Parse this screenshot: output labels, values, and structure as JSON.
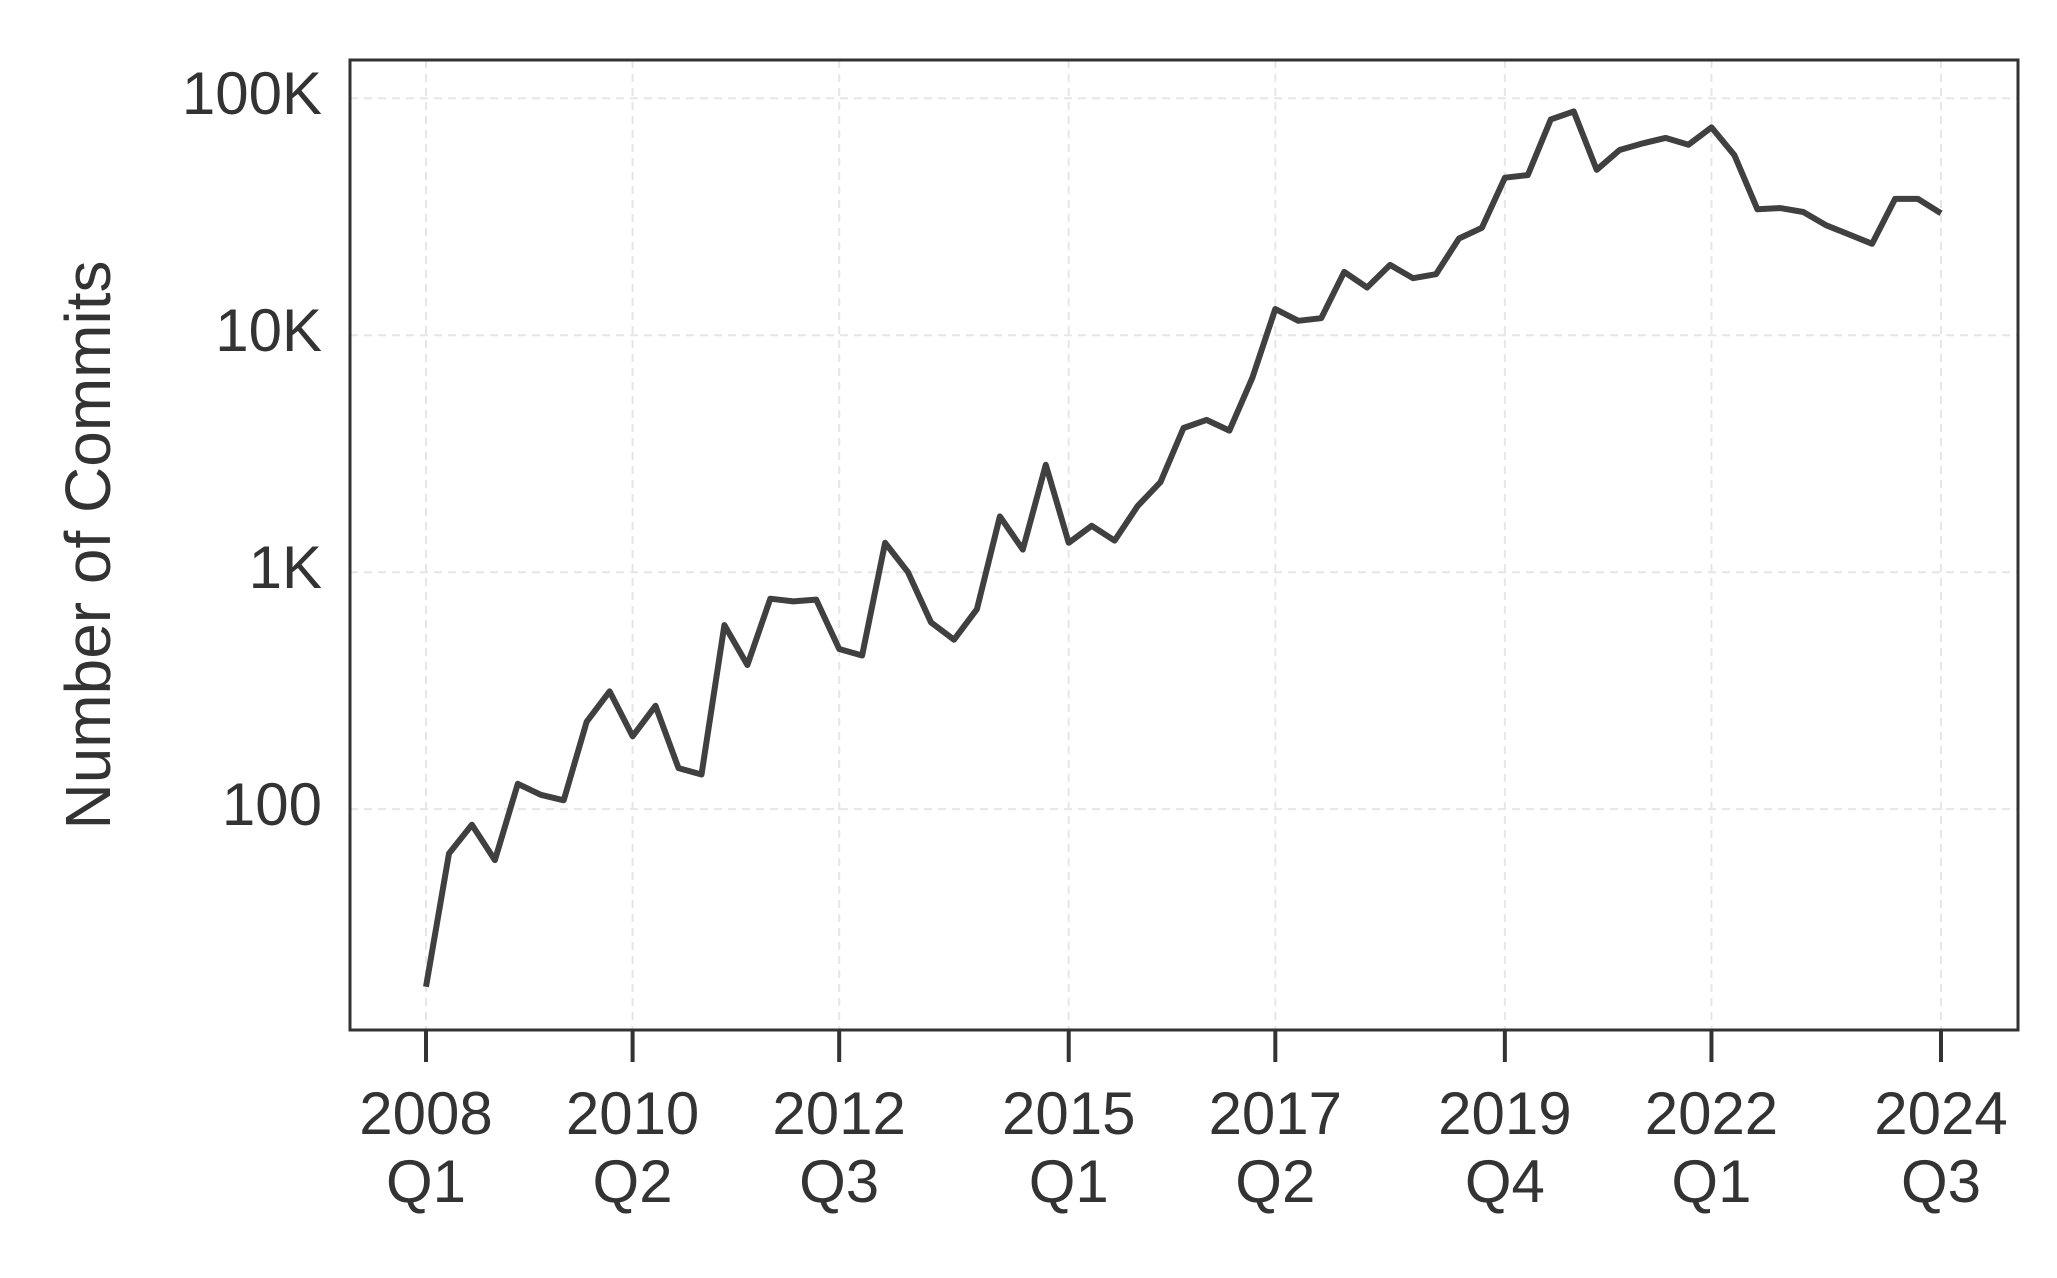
{
  "chart_data": {
    "type": "line",
    "y_label": "Number of Commits",
    "categories": [
      "2008\nQ1",
      null,
      null,
      null,
      null,
      null,
      null,
      null,
      null,
      "2010\nQ2",
      null,
      null,
      null,
      null,
      null,
      null,
      null,
      null,
      "2012\nQ3",
      null,
      null,
      null,
      null,
      null,
      null,
      null,
      null,
      null,
      "2015\nQ1",
      null,
      null,
      null,
      null,
      null,
      null,
      null,
      null,
      "2017\nQ2",
      null,
      null,
      null,
      null,
      null,
      null,
      null,
      null,
      null,
      "2019\nQ4",
      null,
      null,
      null,
      null,
      null,
      null,
      null,
      null,
      "2022\nQ1",
      null,
      null,
      null,
      null,
      null,
      null,
      null,
      null,
      null,
      "2024\nQ3"
    ],
    "series": [
      {
        "name": "Commits",
        "color": "#404040",
        "values": [
          17.8,
          65,
          86,
          61,
          128,
          115,
          109,
          234,
          314,
          203,
          273,
          149,
          140,
          598,
          406,
          773,
          753,
          766,
          474,
          445,
          1330,
          1000,
          614,
          519,
          698,
          1720,
          1245,
          2840,
          1330,
          1570,
          1360,
          1900,
          2400,
          4060,
          4390,
          3960,
          6620,
          12900,
          11500,
          11800,
          18500,
          15900,
          19800,
          17400,
          18100,
          25600,
          28400,
          46200,
          47400,
          81400,
          88000,
          49900,
          60500,
          64500,
          68000,
          63700,
          75300,
          57500,
          34000,
          34400,
          33100,
          29100,
          26600,
          24300,
          37600,
          37600,
          32700
        ]
      }
    ],
    "log_y": true,
    "ylim": [
      11.7,
      145000
    ],
    "yticks": [
      100,
      {
        "value": 1000,
        "label": "1K"
      },
      {
        "value": 10000,
        "label": "10K"
      },
      {
        "value": 100000,
        "label": "100K"
      }
    ],
    "grid": true
  }
}
